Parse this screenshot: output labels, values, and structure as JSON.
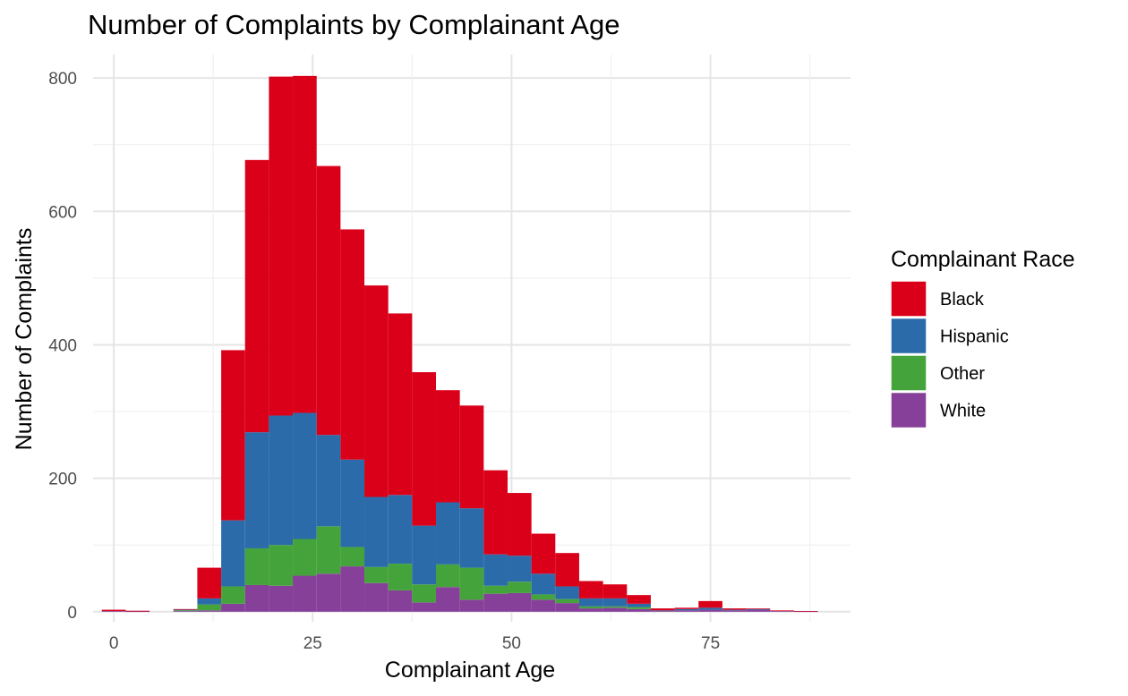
{
  "chart_data": {
    "type": "bar",
    "stacked": true,
    "title": "Number of Complaints by Complainant Age",
    "xlabel": "Complainant Age",
    "ylabel": "Number of Complaints",
    "xlim": [
      -2.6,
      92.6
    ],
    "ylim": [
      -15,
      835
    ],
    "x_ticks": [
      0,
      25,
      50,
      75
    ],
    "y_ticks": [
      0,
      200,
      400,
      600,
      800
    ],
    "grid": true,
    "bin_width": 3,
    "legend": {
      "title": "Complainant Race",
      "placement": "right",
      "order": [
        "Black",
        "Hispanic",
        "Other",
        "White"
      ]
    },
    "bin_centers": [
      0,
      3,
      6,
      9,
      12,
      15,
      18,
      21,
      24,
      27,
      30,
      33,
      36,
      39,
      42,
      45,
      48,
      51,
      54,
      57,
      60,
      63,
      66,
      69,
      72,
      75,
      78,
      81,
      84,
      87
    ],
    "series": [
      {
        "name": "White",
        "color": "#874099",
        "values": [
          1,
          0.5,
          0,
          1,
          2,
          12,
          40,
          39,
          54,
          57,
          68,
          43,
          32,
          14,
          37,
          18,
          27,
          28,
          18,
          13,
          5,
          6,
          4,
          1,
          2,
          3,
          2,
          3,
          1,
          0.5
        ]
      },
      {
        "name": "Other",
        "color": "#44A43B",
        "values": [
          0,
          0,
          0,
          1,
          9,
          26,
          55,
          61,
          55,
          71,
          29,
          24,
          40,
          27,
          34,
          48,
          12,
          17,
          8,
          6,
          3,
          2,
          3,
          0,
          0,
          0,
          0,
          0,
          0,
          0
        ]
      },
      {
        "name": "Hispanic",
        "color": "#2C6BAA",
        "values": [
          0,
          0,
          0,
          1,
          9,
          99,
          174,
          194,
          189,
          137,
          131,
          105,
          103,
          88,
          93,
          89,
          47,
          39,
          31,
          19,
          12,
          12,
          5,
          1,
          2,
          3,
          1,
          1,
          0,
          0
        ]
      },
      {
        "name": "Black",
        "color": "#DB001A",
        "values": [
          2,
          1,
          0,
          1,
          46,
          255,
          408,
          508,
          505,
          403,
          345,
          317,
          272,
          230,
          168,
          154,
          126,
          94,
          60,
          50,
          26,
          21,
          13,
          3,
          2,
          10,
          2,
          1,
          1,
          0.5
        ]
      }
    ]
  }
}
